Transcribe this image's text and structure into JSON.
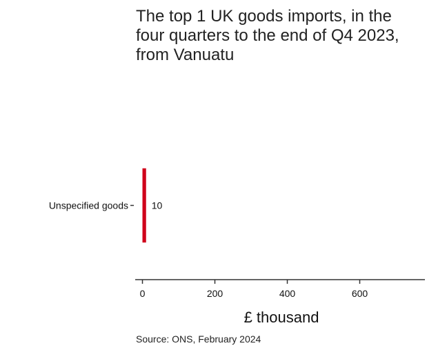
{
  "chart_data": {
    "type": "bar",
    "orientation": "horizontal",
    "title": "The top 1 UK goods imports, in the four quarters to the end of Q4 2023, from Vanuatu",
    "categories": [
      "Unspecified goods"
    ],
    "values": [
      10
    ],
    "data_labels": [
      "10"
    ],
    "xlabel": "£ thousand",
    "ylabel": "",
    "xlim": [
      -20,
      780
    ],
    "xticks": [
      0,
      200,
      400,
      600
    ],
    "xtick_labels": [
      "0",
      "200",
      "400",
      "600"
    ],
    "grid": false,
    "legend": "none",
    "bar_color": "#d0021b",
    "source": "Source: ONS, February 2024"
  }
}
